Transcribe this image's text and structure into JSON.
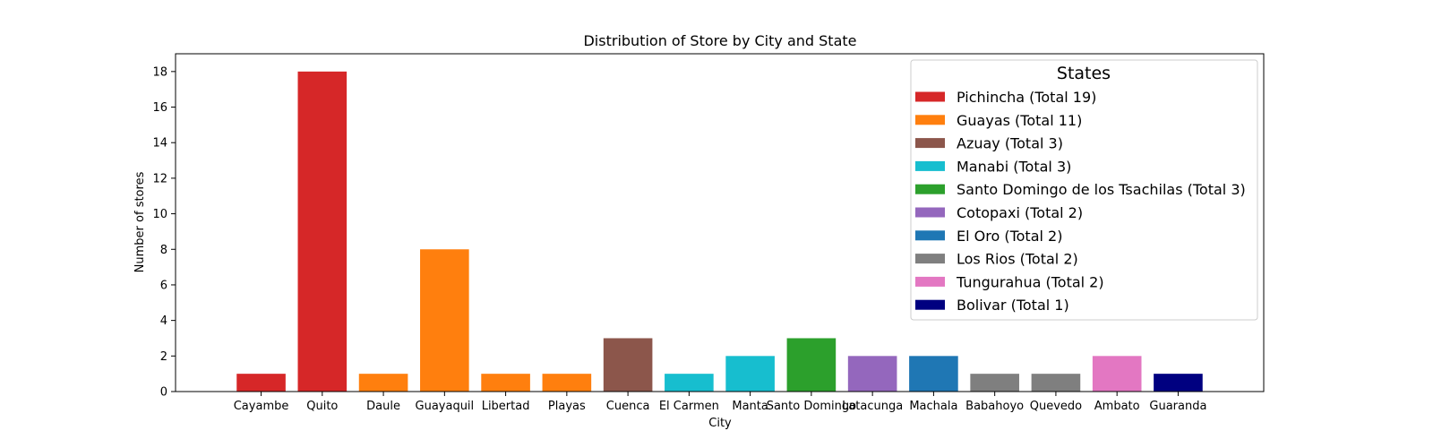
{
  "chart_data": {
    "type": "bar",
    "title": "Distribution of Store by City and State",
    "xlabel": "City",
    "ylabel": "Number of stores",
    "ylim": [
      0,
      19
    ],
    "yticks": [
      0,
      2,
      4,
      6,
      8,
      10,
      12,
      14,
      16,
      18
    ],
    "categories": [
      "Cayambe",
      "Quito",
      "Daule",
      "Guayaquil",
      "Libertad",
      "Playas",
      "Cuenca",
      "El Carmen",
      "Manta",
      "Santo Domingo",
      "Latacunga",
      "Machala",
      "Babahoyo",
      "Quevedo",
      "Ambato",
      "Guaranda"
    ],
    "values": [
      1,
      18,
      1,
      8,
      1,
      1,
      3,
      1,
      2,
      3,
      2,
      2,
      1,
      1,
      2,
      1
    ],
    "bar_states": [
      "Pichincha",
      "Pichincha",
      "Guayas",
      "Guayas",
      "Guayas",
      "Guayas",
      "Azuay",
      "Manabi",
      "Manabi",
      "Santo Domingo de los Tsachilas",
      "Cotopaxi",
      "El Oro",
      "Los Rios",
      "Los Rios",
      "Tungurahua",
      "Bolivar"
    ],
    "legend": {
      "title": "States",
      "position": "top-right",
      "entries": [
        {
          "state": "Pichincha",
          "label": "Pichincha (Total 19)",
          "color": "#d62728"
        },
        {
          "state": "Guayas",
          "label": "Guayas (Total 11)",
          "color": "#ff7f0e"
        },
        {
          "state": "Azuay",
          "label": "Azuay (Total 3)",
          "color": "#8c564b"
        },
        {
          "state": "Manabi",
          "label": "Manabi (Total 3)",
          "color": "#17becf"
        },
        {
          "state": "Santo Domingo de los Tsachilas",
          "label": "Santo Domingo de los Tsachilas (Total 3)",
          "color": "#2ca02c"
        },
        {
          "state": "Cotopaxi",
          "label": "Cotopaxi (Total 2)",
          "color": "#9467bd"
        },
        {
          "state": "El Oro",
          "label": "El Oro (Total 2)",
          "color": "#1f77b4"
        },
        {
          "state": "Los Rios",
          "label": "Los Rios (Total 2)",
          "color": "#7f7f7f"
        },
        {
          "state": "Tungurahua",
          "label": "Tungurahua (Total 2)",
          "color": "#e377c2"
        },
        {
          "state": "Bolivar",
          "label": "Bolivar (Total 1)",
          "color": "#000080"
        }
      ]
    },
    "grid": false
  }
}
